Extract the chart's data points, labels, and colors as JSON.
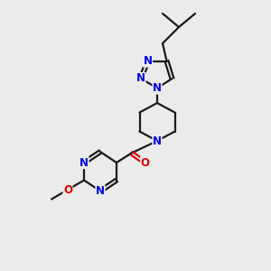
{
  "bg_color": "#ebebeb",
  "bond_color": "#1a1a1a",
  "n_color": "#0000ee",
  "o_color": "#dd0000",
  "line_width": 1.6,
  "font_size_atom": 8.5,
  "xlim": [
    0,
    10
  ],
  "ylim": [
    0,
    10
  ]
}
